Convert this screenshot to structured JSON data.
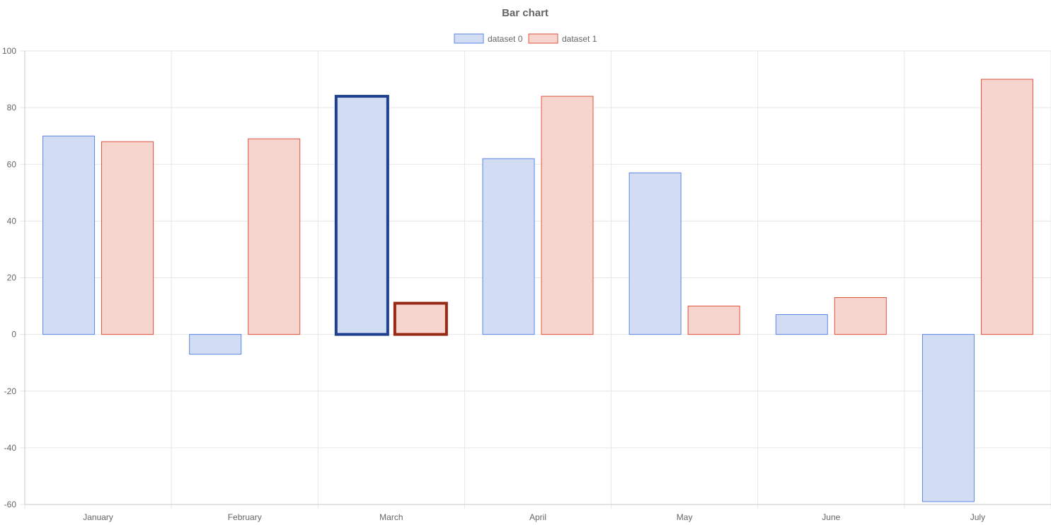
{
  "chart_data": {
    "type": "bar",
    "title": "Bar chart",
    "categories": [
      "January",
      "February",
      "March",
      "April",
      "May",
      "June",
      "July"
    ],
    "series": [
      {
        "name": "dataset 0",
        "values": [
          70,
          -7,
          84,
          62,
          57,
          7,
          -59
        ],
        "fill": "#d2ddf4",
        "stroke": "#5b86e5"
      },
      {
        "name": "dataset 1",
        "values": [
          68,
          69,
          11,
          84,
          10,
          13,
          90
        ],
        "fill": "#f7d5cf",
        "stroke": "#e0523d"
      }
    ],
    "highlight": {
      "category": "March",
      "colors": [
        "#1f3f8f",
        "#962a17"
      ]
    },
    "ylim": [
      -60,
      100
    ],
    "yticks": [
      "100",
      "80",
      "60",
      "40",
      "20",
      "0",
      "-20",
      "-40",
      "-60"
    ],
    "legend_position": "top-center",
    "grid": true
  },
  "colors": {
    "grid": "#e6e6e6",
    "axis": "#c8c8c8",
    "text": "#666666"
  }
}
